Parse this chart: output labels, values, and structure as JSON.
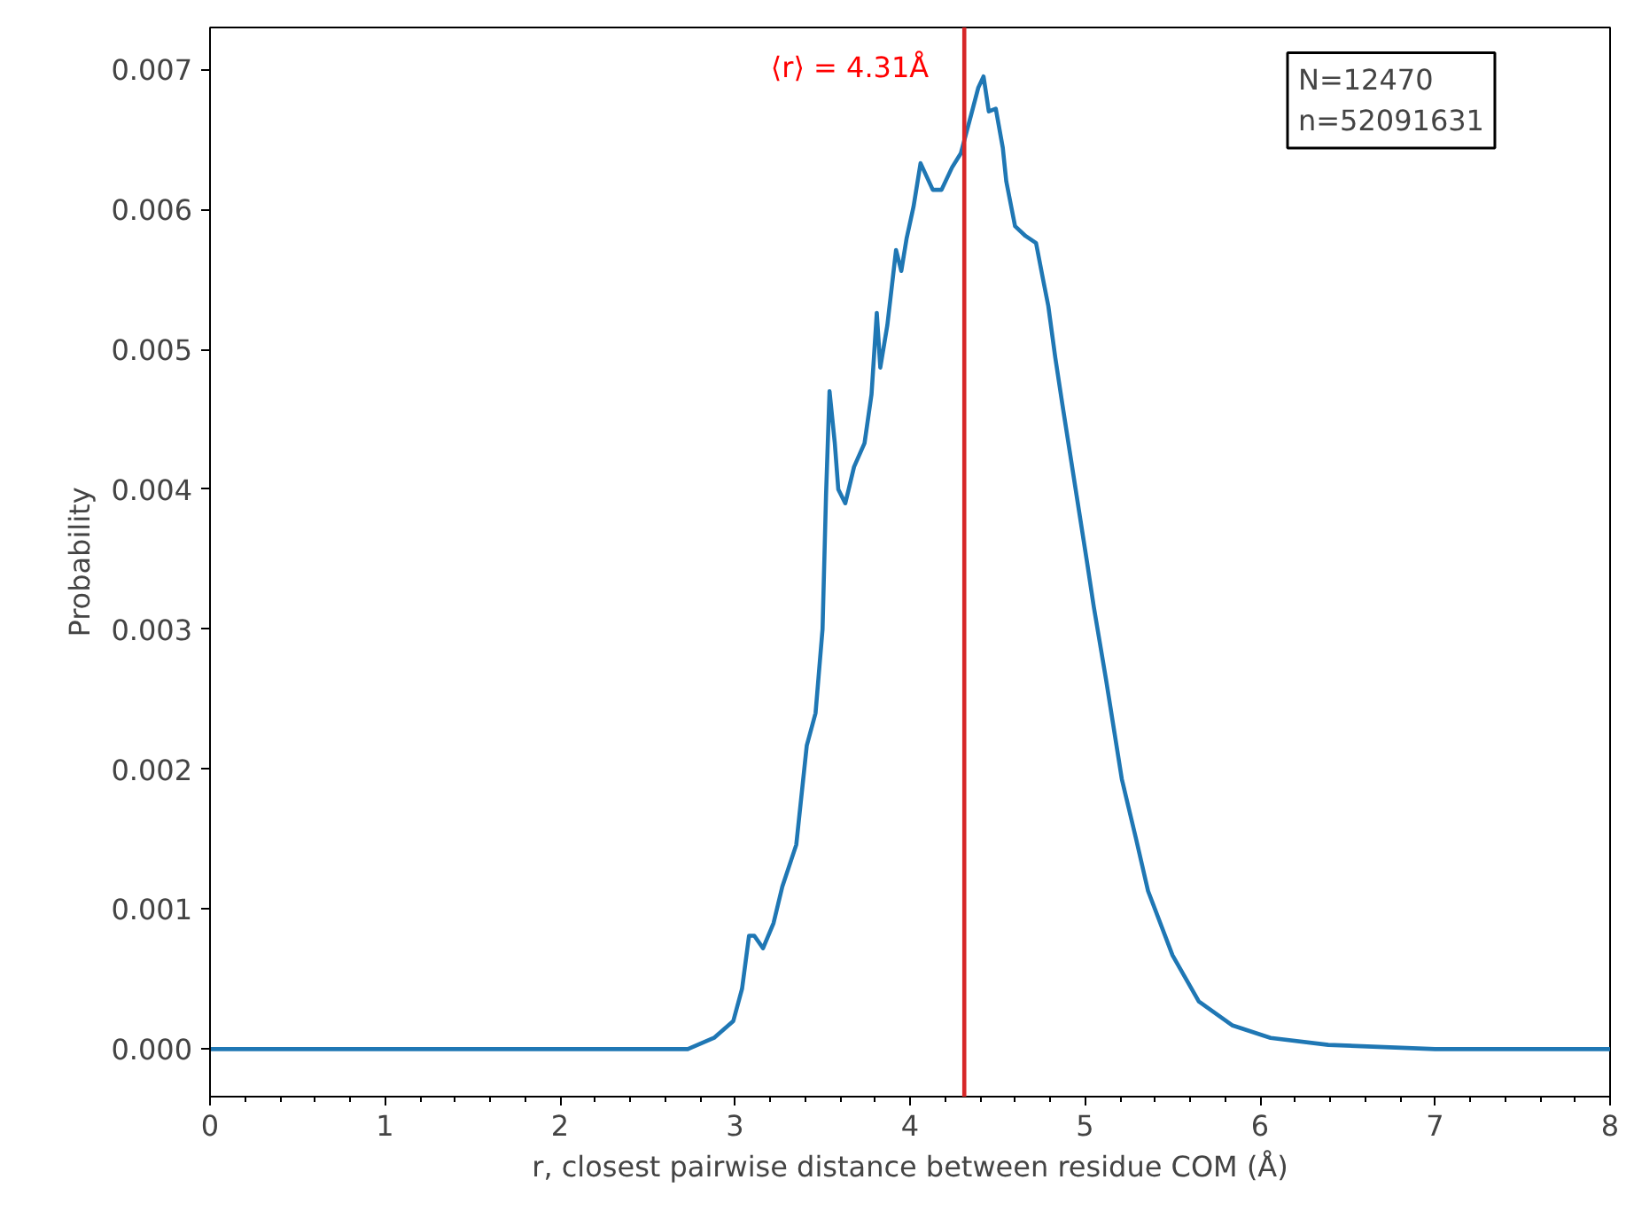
{
  "chart_data": {
    "type": "line",
    "xlabel": "r, closest pairwise distance between residue COM (Å)",
    "ylabel": "Probability",
    "x": [
      0,
      1,
      2,
      2.51,
      2.73,
      2.88,
      2.99,
      3.04,
      3.08,
      3.11,
      3.16,
      3.22,
      3.27,
      3.35,
      3.41,
      3.46,
      3.5,
      3.52,
      3.54,
      3.57,
      3.59,
      3.63,
      3.68,
      3.74,
      3.78,
      3.81,
      3.83,
      3.87,
      3.92,
      3.95,
      3.98,
      4.02,
      4.06,
      4.13,
      4.18,
      4.24,
      4.29,
      4.35,
      4.39,
      4.42,
      4.45,
      4.49,
      4.53,
      4.55,
      4.6,
      4.66,
      4.72,
      4.76,
      4.79,
      4.83,
      4.87,
      4.94,
      5.01,
      5.05,
      5.12,
      5.21,
      5.29,
      5.36,
      5.5,
      5.65,
      5.84,
      6.06,
      6.39,
      7,
      8
    ],
    "series": [
      {
        "color": "#1f77b4",
        "values": [
          0,
          0,
          0,
          0,
          0,
          8e-05,
          0.0002,
          0.00043,
          0.00081,
          0.00081,
          0.00072,
          0.0009,
          0.00116,
          0.00146,
          0.00217,
          0.0024,
          0.003,
          0.00396,
          0.0047,
          0.00433,
          0.004,
          0.0039,
          0.00416,
          0.00433,
          0.00468,
          0.00526,
          0.00487,
          0.00517,
          0.00571,
          0.00556,
          0.00579,
          0.00602,
          0.00633,
          0.00614,
          0.00614,
          0.0063,
          0.0064,
          0.00668,
          0.00687,
          0.00695,
          0.0067,
          0.00672,
          0.00644,
          0.0062,
          0.00588,
          0.00581,
          0.00576,
          0.0055,
          0.00531,
          0.00494,
          0.00461,
          0.00405,
          0.00349,
          0.00316,
          0.00264,
          0.00193,
          0.00151,
          0.00113,
          0.00067,
          0.00034,
          0.00017,
          8e-05,
          3e-05,
          0,
          0
        ]
      }
    ],
    "xlim": [
      0,
      8
    ],
    "ylim": [
      -0.00034,
      0.0073
    ],
    "xticks": [
      0,
      1,
      2,
      3,
      4,
      5,
      6,
      7,
      8
    ],
    "yticks": [
      {
        "value": 0,
        "label": "0.000"
      },
      {
        "value": 0.001,
        "label": "0.001"
      },
      {
        "value": 0.002,
        "label": "0.002"
      },
      {
        "value": 0.003,
        "label": "0.003"
      },
      {
        "value": 0.004,
        "label": "0.004"
      },
      {
        "value": 0.005,
        "label": "0.005"
      },
      {
        "value": 0.006,
        "label": "0.006"
      },
      {
        "value": 0.007,
        "label": "0.007"
      }
    ],
    "ref_lines": [
      {
        "axis": "x",
        "value": 4.31,
        "label": "⟨r⟩ = 4.31Å",
        "color": "#d62728"
      }
    ],
    "annotations": [
      "N=12470\nn=52091631"
    ],
    "grid": false,
    "marker": "none",
    "line_style": "solid"
  }
}
